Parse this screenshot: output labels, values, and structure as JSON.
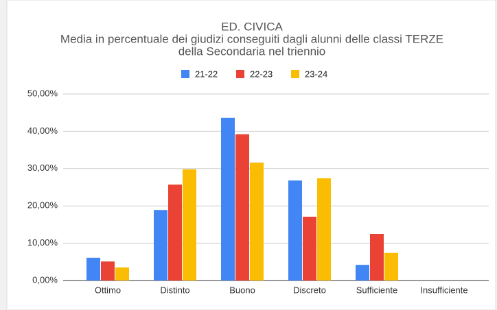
{
  "chart_data": {
    "type": "bar",
    "title": "ED. CIVICA",
    "subtitle": [
      "Media in percentuale dei giudizi conseguiti dagli alunni delle classi TERZE",
      "della Secondaria nel triennio"
    ],
    "categories": [
      "Ottimo",
      "Distinto",
      "Buono",
      "Discreto",
      "Sufficiente",
      "Insufficiente"
    ],
    "series": [
      {
        "name": "21-22",
        "color": "#4285f4",
        "values": [
          6.1,
          18.9,
          43.6,
          26.8,
          4.2,
          0
        ]
      },
      {
        "name": "22-23",
        "color": "#ea4335",
        "values": [
          5.1,
          25.7,
          39.2,
          17.1,
          12.5,
          0
        ]
      },
      {
        "name": "23-24",
        "color": "#fbbc04",
        "values": [
          3.5,
          29.8,
          31.6,
          27.4,
          7.4,
          0
        ]
      }
    ],
    "ylim": [
      0,
      50
    ],
    "yticks": [
      {
        "value": 0,
        "label": "0,00%"
      },
      {
        "value": 10,
        "label": "10,00%"
      },
      {
        "value": 20,
        "label": "20,00%"
      },
      {
        "value": 30,
        "label": "30,00%"
      },
      {
        "value": 40,
        "label": "40,00%"
      },
      {
        "value": 50,
        "label": "50,00%"
      }
    ],
    "grid": true,
    "legend": "top"
  }
}
